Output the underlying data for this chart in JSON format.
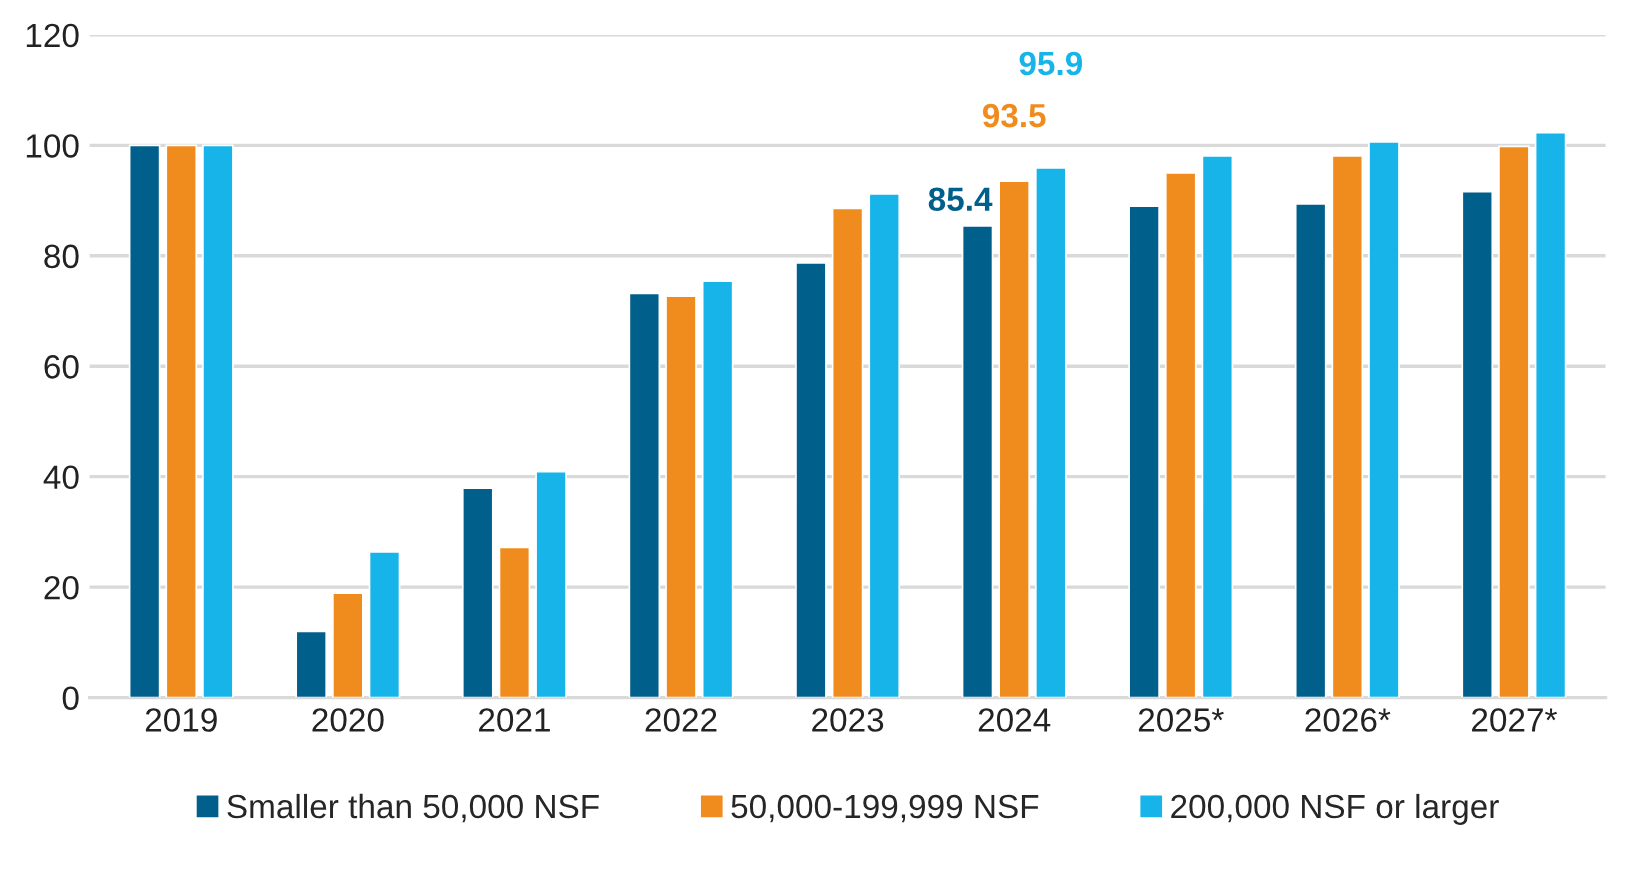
{
  "chart_data": {
    "type": "bar",
    "categories": [
      "2019",
      "2020",
      "2021",
      "2022",
      "2023",
      "2024",
      "2025*",
      "2026*",
      "2027*"
    ],
    "series": [
      {
        "name": "Smaller than 50,000 NSF",
        "color": "#005f8b",
        "values": [
          100,
          12.0,
          37.9,
          73.2,
          78.7,
          85.4,
          89.0,
          89.4,
          91.6
        ],
        "value_labels": [
          null,
          null,
          null,
          null,
          null,
          "85.4",
          null,
          null,
          null
        ]
      },
      {
        "name": "50,000-199,999 NSF",
        "color": "#f08c1e",
        "values": [
          100,
          18.9,
          27.2,
          72.7,
          88.6,
          93.5,
          95.0,
          98.1,
          99.8
        ],
        "value_labels": [
          null,
          null,
          null,
          null,
          null,
          "93.5",
          null,
          null,
          null
        ]
      },
      {
        "name": "200,000 NSF or larger",
        "color": "#17b4e9",
        "values": [
          100,
          26.4,
          40.9,
          75.4,
          91.2,
          95.9,
          98.1,
          100.6,
          102.3
        ],
        "value_labels": [
          null,
          null,
          null,
          null,
          null,
          "95.9",
          null,
          null,
          null
        ]
      }
    ],
    "ylim": [
      0,
      120
    ],
    "yticks": [
      0,
      20,
      40,
      60,
      80,
      100,
      120
    ],
    "grid": "y",
    "legend": "bottom"
  }
}
